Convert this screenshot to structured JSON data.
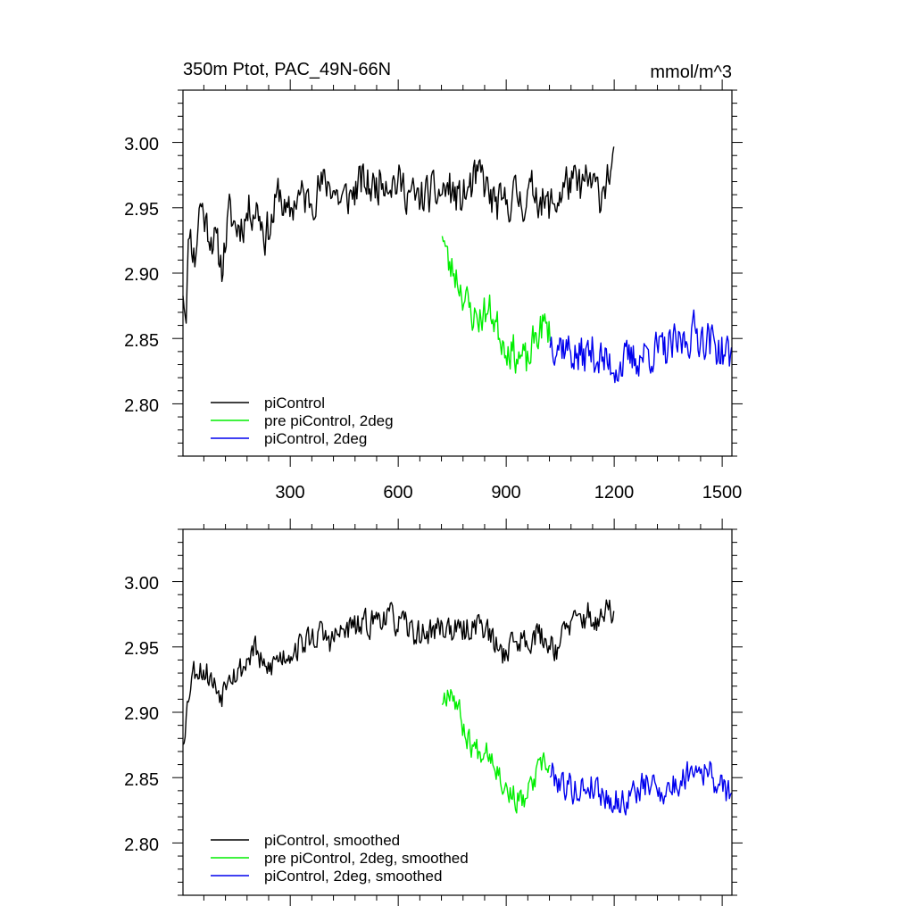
{
  "chart_data": [
    {
      "type": "line",
      "title": "350m Ptot, PAC_49N-66N",
      "units_label": "mmol/m^3",
      "xlim": [
        2,
        1527
      ],
      "ylim": [
        2.76,
        3.04
      ],
      "x_ticks": [
        300,
        600,
        900,
        1200,
        1500
      ],
      "x_tick_labels": [
        "300",
        "600",
        "900",
        "1200",
        "1500"
      ],
      "y_ticks": [
        2.8,
        2.85,
        2.9,
        2.95,
        3.0
      ],
      "y_tick_labels": [
        "2.80",
        "2.85",
        "2.90",
        "2.95",
        "3.00"
      ],
      "legend_position": "bottom-left",
      "series": [
        {
          "name": "piControl",
          "color": "#000000",
          "x_range": [
            2,
            1201
          ],
          "anchors": [
            [
              2,
              2.89
            ],
            [
              10,
              2.87
            ],
            [
              20,
              2.935
            ],
            [
              35,
              2.91
            ],
            [
              50,
              2.955
            ],
            [
              70,
              2.935
            ],
            [
              90,
              2.925
            ],
            [
              110,
              2.905
            ],
            [
              130,
              2.945
            ],
            [
              150,
              2.935
            ],
            [
              170,
              2.94
            ],
            [
              190,
              2.95
            ],
            [
              210,
              2.95
            ],
            [
              230,
              2.93
            ],
            [
              250,
              2.94
            ],
            [
              270,
              2.965
            ],
            [
              290,
              2.94
            ],
            [
              320,
              2.96
            ],
            [
              350,
              2.955
            ],
            [
              380,
              2.965
            ],
            [
              410,
              2.97
            ],
            [
              440,
              2.955
            ],
            [
              470,
              2.96
            ],
            [
              500,
              2.97
            ],
            [
              530,
              2.965
            ],
            [
              560,
              2.975
            ],
            [
              590,
              2.97
            ],
            [
              620,
              2.965
            ],
            [
              650,
              2.955
            ],
            [
              680,
              2.96
            ],
            [
              710,
              2.96
            ],
            [
              740,
              2.965
            ],
            [
              770,
              2.955
            ],
            [
              800,
              2.965
            ],
            [
              830,
              2.975
            ],
            [
              860,
              2.955
            ],
            [
              890,
              2.95
            ],
            [
              920,
              2.96
            ],
            [
              950,
              2.955
            ],
            [
              980,
              2.965
            ],
            [
              1010,
              2.95
            ],
            [
              1040,
              2.955
            ],
            [
              1070,
              2.97
            ],
            [
              1100,
              2.965
            ],
            [
              1130,
              2.97
            ],
            [
              1160,
              2.96
            ],
            [
              1180,
              2.975
            ],
            [
              1201,
              2.98
            ]
          ],
          "amplitude": 0.022,
          "seed": 11
        },
        {
          "name": "pre piControl, 2deg",
          "color": "#00ee00",
          "x_range": [
            722,
            1022
          ],
          "anchors": [
            [
              722,
              2.935
            ],
            [
              740,
              2.905
            ],
            [
              760,
              2.9
            ],
            [
              780,
              2.885
            ],
            [
              800,
              2.87
            ],
            [
              820,
              2.865
            ],
            [
              840,
              2.87
            ],
            [
              860,
              2.87
            ],
            [
              880,
              2.855
            ],
            [
              900,
              2.845
            ],
            [
              920,
              2.84
            ],
            [
              940,
              2.835
            ],
            [
              960,
              2.83
            ],
            [
              980,
              2.85
            ],
            [
              1000,
              2.86
            ],
            [
              1022,
              2.855
            ]
          ],
          "amplitude": 0.02,
          "seed": 23
        },
        {
          "name": "piControl, 2deg",
          "color": "#0000ee",
          "x_range": [
            1022,
            1527
          ],
          "anchors": [
            [
              1022,
              2.85
            ],
            [
              1060,
              2.845
            ],
            [
              1100,
              2.835
            ],
            [
              1140,
              2.84
            ],
            [
              1180,
              2.83
            ],
            [
              1220,
              2.83
            ],
            [
              1260,
              2.835
            ],
            [
              1300,
              2.84
            ],
            [
              1340,
              2.84
            ],
            [
              1380,
              2.845
            ],
            [
              1420,
              2.855
            ],
            [
              1460,
              2.85
            ],
            [
              1500,
              2.84
            ],
            [
              1527,
              2.835
            ]
          ],
          "amplitude": 0.022,
          "seed": 37
        }
      ]
    },
    {
      "type": "line",
      "title": "",
      "units_label": "",
      "xlim": [
        2,
        1527
      ],
      "ylim": [
        2.76,
        3.04
      ],
      "x_ticks": [
        300,
        600,
        900,
        1200,
        1500
      ],
      "x_tick_labels": [],
      "y_ticks": [
        2.8,
        2.85,
        2.9,
        2.95,
        3.0
      ],
      "y_tick_labels": [
        "2.80",
        "2.85",
        "2.90",
        "2.95",
        "3.00"
      ],
      "legend_position": "bottom-left",
      "series": [
        {
          "name": "piControl, smoothed",
          "color": "#000000",
          "x_range": [
            2,
            1201
          ],
          "anchors": [
            [
              2,
              2.88
            ],
            [
              12,
              2.9
            ],
            [
              25,
              2.93
            ],
            [
              45,
              2.935
            ],
            [
              70,
              2.93
            ],
            [
              90,
              2.92
            ],
            [
              110,
              2.915
            ],
            [
              130,
              2.935
            ],
            [
              150,
              2.93
            ],
            [
              170,
              2.935
            ],
            [
              200,
              2.95
            ],
            [
              230,
              2.93
            ],
            [
              260,
              2.94
            ],
            [
              290,
              2.945
            ],
            [
              320,
              2.95
            ],
            [
              350,
              2.955
            ],
            [
              380,
              2.96
            ],
            [
              410,
              2.955
            ],
            [
              440,
              2.96
            ],
            [
              470,
              2.965
            ],
            [
              500,
              2.965
            ],
            [
              530,
              2.97
            ],
            [
              560,
              2.975
            ],
            [
              590,
              2.97
            ],
            [
              620,
              2.965
            ],
            [
              650,
              2.96
            ],
            [
              680,
              2.96
            ],
            [
              710,
              2.965
            ],
            [
              740,
              2.965
            ],
            [
              770,
              2.96
            ],
            [
              800,
              2.965
            ],
            [
              830,
              2.97
            ],
            [
              860,
              2.955
            ],
            [
              890,
              2.945
            ],
            [
              920,
              2.955
            ],
            [
              950,
              2.955
            ],
            [
              980,
              2.96
            ],
            [
              1010,
              2.955
            ],
            [
              1040,
              2.95
            ],
            [
              1070,
              2.965
            ],
            [
              1100,
              2.97
            ],
            [
              1130,
              2.975
            ],
            [
              1160,
              2.965
            ],
            [
              1180,
              2.98
            ],
            [
              1201,
              2.975
            ]
          ],
          "amplitude": 0.015,
          "seed": 53
        },
        {
          "name": "pre piControl, 2deg, smoothed",
          "color": "#00ee00",
          "x_range": [
            722,
            1022
          ],
          "anchors": [
            [
              722,
              2.91
            ],
            [
              745,
              2.92
            ],
            [
              765,
              2.905
            ],
            [
              785,
              2.885
            ],
            [
              805,
              2.875
            ],
            [
              825,
              2.87
            ],
            [
              845,
              2.875
            ],
            [
              865,
              2.865
            ],
            [
              885,
              2.85
            ],
            [
              905,
              2.84
            ],
            [
              925,
              2.835
            ],
            [
              945,
              2.83
            ],
            [
              965,
              2.84
            ],
            [
              990,
              2.855
            ],
            [
              1010,
              2.86
            ],
            [
              1022,
              2.855
            ]
          ],
          "amplitude": 0.014,
          "seed": 67
        },
        {
          "name": "piControl, 2deg, smoothed",
          "color": "#0000ee",
          "x_range": [
            1022,
            1527
          ],
          "anchors": [
            [
              1022,
              2.855
            ],
            [
              1060,
              2.845
            ],
            [
              1100,
              2.84
            ],
            [
              1140,
              2.845
            ],
            [
              1180,
              2.835
            ],
            [
              1220,
              2.83
            ],
            [
              1260,
              2.84
            ],
            [
              1300,
              2.845
            ],
            [
              1340,
              2.84
            ],
            [
              1380,
              2.845
            ],
            [
              1420,
              2.86
            ],
            [
              1460,
              2.855
            ],
            [
              1500,
              2.84
            ],
            [
              1527,
              2.84
            ]
          ],
          "amplitude": 0.016,
          "seed": 79
        }
      ]
    }
  ]
}
